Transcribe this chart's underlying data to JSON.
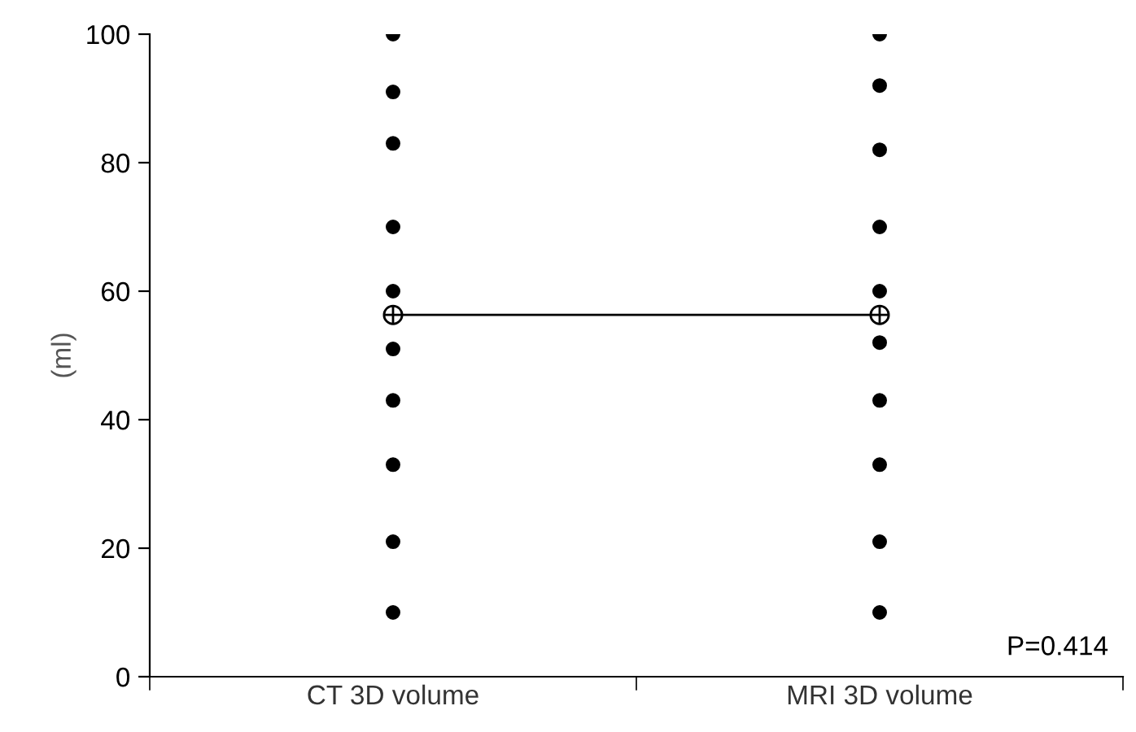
{
  "chart_data": {
    "type": "scatter",
    "categories": [
      "CT 3D volume",
      "MRI 3D volume"
    ],
    "ylabel": "(ml)",
    "ylim": [
      0,
      100
    ],
    "yticks": [
      0,
      20,
      40,
      60,
      80,
      100
    ],
    "grid": false,
    "legend": false,
    "annotations": [
      "P=0.414"
    ],
    "series": [
      {
        "color": "#000000",
        "marker": "circle",
        "x": [
          "CT 3D volume",
          "CT 3D volume",
          "CT 3D volume",
          "CT 3D volume",
          "CT 3D volume",
          "CT 3D volume",
          "CT 3D volume",
          "CT 3D volume",
          "CT 3D volume",
          "CT 3D volume"
        ],
        "values": [
          100,
          91,
          83,
          70,
          60,
          51,
          43,
          33,
          21,
          10
        ]
      },
      {
        "color": "#000000",
        "marker": "circle",
        "x": [
          "MRI 3D volume",
          "MRI 3D volume",
          "MRI 3D volume",
          "MRI 3D volume",
          "MRI 3D volume",
          "MRI 3D volume",
          "MRI 3D volume",
          "MRI 3D volume",
          "MRI 3D volume",
          "MRI 3D volume"
        ],
        "values": [
          100,
          92,
          82,
          70,
          60,
          52,
          43,
          33,
          21,
          10
        ]
      },
      {
        "type": "line",
        "color": "#000000",
        "marker": "circle",
        "x": [
          "CT 3D volume",
          "MRI 3D volume"
        ],
        "values": [
          56.3,
          56.3
        ]
      }
    ]
  }
}
